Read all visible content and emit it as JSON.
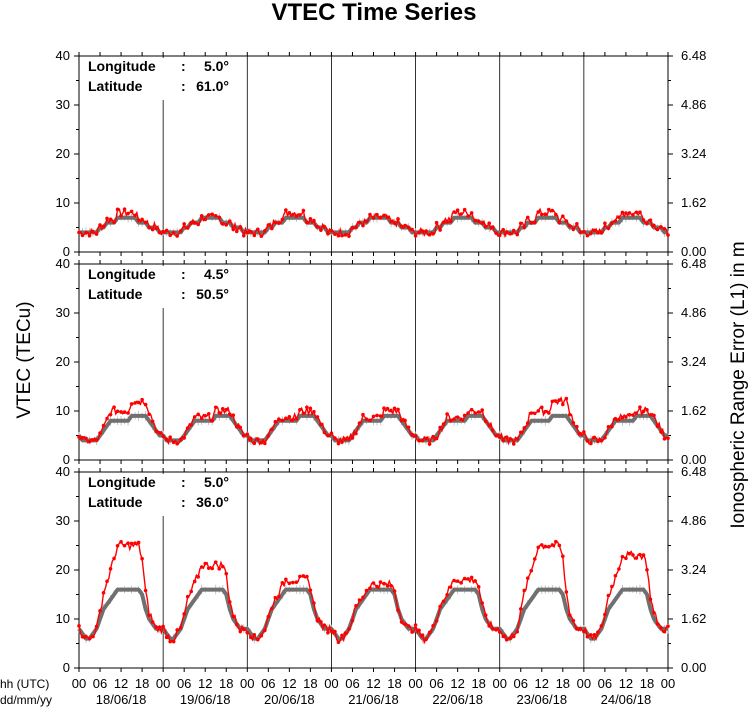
{
  "chart_data": {
    "type": "line",
    "title": "VTEC Time Series",
    "ylabel_left": "VTEC (TECu)",
    "ylabel_right": "Ionospheric Range Error (L1) in m",
    "xlabel_hours": "hh (UTC)",
    "xlabel_dates": "dd/mm/yy",
    "hour_ticks": [
      "00",
      "06",
      "12",
      "18"
    ],
    "final_hour_tick": "00",
    "dates": [
      "18/06/18",
      "19/06/18",
      "20/06/18",
      "21/06/18",
      "22/06/18",
      "23/06/18",
      "24/06/18"
    ],
    "y_ticks_left": [
      "0",
      "10",
      "20",
      "30",
      "40"
    ],
    "y_ticks_right": [
      "0.00",
      "1.62",
      "3.24",
      "4.86",
      "6.48"
    ],
    "ylim": [
      0,
      40
    ],
    "colors": {
      "observed": "#ff0000",
      "reference": "#707070",
      "error_bar": "#b8b8b8"
    },
    "panels": [
      {
        "longitude_label": "Longitude",
        "latitude_label": "Latitude",
        "longitude": "5.0°",
        "latitude": "61.0°",
        "reference_hourly_profile": [
          4,
          4,
          4,
          4,
          4,
          4,
          5,
          5,
          6,
          6,
          6,
          7,
          7,
          7,
          7,
          7,
          7,
          6,
          6,
          6,
          5,
          5,
          5,
          4
        ],
        "observed_daily_max": [
          8,
          7,
          8,
          7,
          8,
          8,
          8
        ]
      },
      {
        "longitude_label": "Longitude",
        "latitude_label": "Latitude",
        "longitude": "4.5°",
        "latitude": "50.5°",
        "reference_hourly_profile": [
          5,
          4,
          4,
          4,
          4,
          4,
          5,
          6,
          7,
          8,
          8,
          8,
          8,
          8,
          8,
          9,
          9,
          9,
          9,
          9,
          8,
          7,
          6,
          5
        ],
        "observed_daily_max": [
          12,
          10,
          10,
          10,
          10,
          12,
          10
        ]
      },
      {
        "longitude_label": "Longitude",
        "latitude_label": "Latitude",
        "longitude": "5.0°",
        "latitude": "36.0°",
        "reference_hourly_profile": [
          8,
          7,
          6,
          6,
          7,
          8,
          10,
          12,
          13,
          14,
          15,
          16,
          16,
          16,
          16,
          16,
          16,
          16,
          15,
          12,
          10,
          9,
          8,
          8
        ],
        "observed_daily_max": [
          25,
          21,
          18,
          17,
          18,
          25,
          23
        ]
      }
    ]
  }
}
